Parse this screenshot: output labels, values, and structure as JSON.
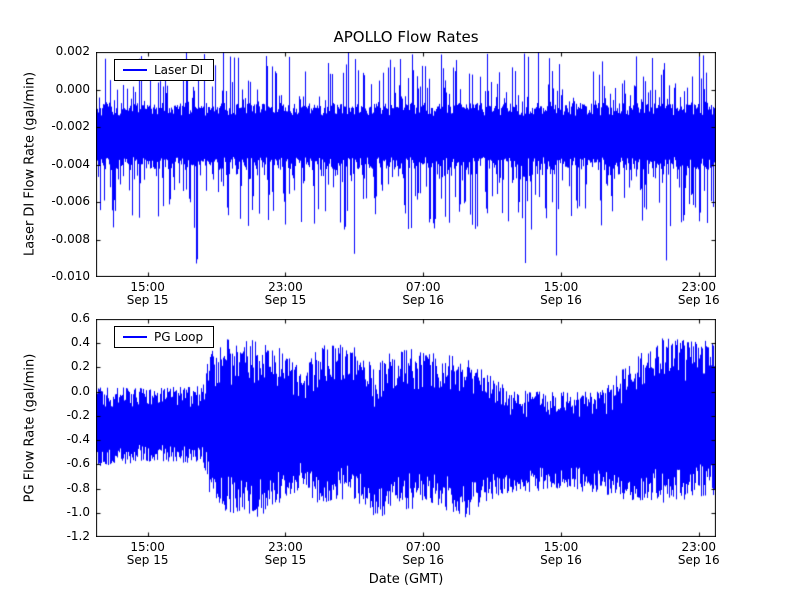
{
  "figure": {
    "title": "APOLLO Flow Rates",
    "background": "#ffffff",
    "line_color": "#0000ff",
    "axis_color": "#000000",
    "text_color": "#000000"
  },
  "chart_data": [
    {
      "type": "line",
      "title": "APOLLO Flow Rates",
      "series_name": "Laser DI",
      "ylabel": "Laser DI Flow Rate (gal/min)",
      "ylim": [
        -0.01,
        0.002
      ],
      "yticks": [
        0.002,
        0.0,
        -0.002,
        -0.004,
        -0.006,
        -0.008,
        -0.01
      ],
      "ytick_labels": [
        "0.002",
        "0.000",
        "-0.002",
        "-0.004",
        "-0.006",
        "-0.008",
        "-0.010"
      ],
      "x_hours_range": [
        0,
        36
      ],
      "x_epoch": "hours since Sep 15 12:00 GMT",
      "xticks_hours": [
        3,
        11,
        19,
        27,
        35
      ],
      "xtick_labels": [
        [
          "15:00",
          "Sep 15"
        ],
        [
          "23:00",
          "Sep 15"
        ],
        [
          "07:00",
          "Sep 16"
        ],
        [
          "15:00",
          "Sep 16"
        ],
        [
          "23:00",
          "Sep 16"
        ]
      ],
      "legend": {
        "label": "Laser DI",
        "position": "upper left"
      },
      "grid": false,
      "signal": {
        "description": "dense high-frequency noise around a baseline",
        "baseline": -0.0025,
        "core_band": [
          -0.0036,
          -0.0014
        ],
        "spike_high_max": 0.002,
        "spike_high_prob": 0.45,
        "spike_low_typical": -0.0075,
        "spike_low_prob": 0.4,
        "spike_low_min": -0.0093,
        "deep_spike_prob": 0.004
      }
    },
    {
      "type": "line",
      "series_name": "PG Loop",
      "ylabel": "PG Flow Rate (gal/min)",
      "xlabel": "Date (GMT)",
      "ylim": [
        -1.2,
        0.6
      ],
      "yticks": [
        0.6,
        0.4,
        0.2,
        0.0,
        -0.2,
        -0.4,
        -0.6,
        -0.8,
        -1.0,
        -1.2
      ],
      "ytick_labels": [
        "0.6",
        "0.4",
        "0.2",
        "0.0",
        "-0.2",
        "-0.4",
        "-0.6",
        "-0.8",
        "-1.0",
        "-1.2"
      ],
      "x_hours_range": [
        0,
        36
      ],
      "x_epoch": "hours since Sep 15 12:00 GMT",
      "xticks_hours": [
        3,
        11,
        19,
        27,
        35
      ],
      "xtick_labels": [
        [
          "15:00",
          "Sep 15"
        ],
        [
          "23:00",
          "Sep 15"
        ],
        [
          "07:00",
          "Sep 16"
        ],
        [
          "15:00",
          "Sep 16"
        ],
        [
          "23:00",
          "Sep 16"
        ]
      ],
      "legend": {
        "label": "PG Loop",
        "position": "upper left"
      },
      "grid": false,
      "signal": {
        "description": "dense oscillating noise; envelope [lo,hi] in gal/min vs hours",
        "envelope": [
          {
            "t": 0.0,
            "lo": -0.62,
            "hi": 0.04
          },
          {
            "t": 3.0,
            "lo": -0.58,
            "hi": 0.03
          },
          {
            "t": 6.2,
            "lo": -0.6,
            "hi": 0.05
          },
          {
            "t": 6.6,
            "lo": -0.85,
            "hi": 0.35
          },
          {
            "t": 7.5,
            "lo": -1.0,
            "hi": 0.45
          },
          {
            "t": 9.5,
            "lo": -1.05,
            "hi": 0.42
          },
          {
            "t": 11.0,
            "lo": -0.9,
            "hi": 0.35
          },
          {
            "t": 12.0,
            "lo": -0.8,
            "hi": 0.15
          },
          {
            "t": 13.0,
            "lo": -0.95,
            "hi": 0.4
          },
          {
            "t": 15.0,
            "lo": -0.9,
            "hi": 0.38
          },
          {
            "t": 16.2,
            "lo": -1.05,
            "hi": 0.2
          },
          {
            "t": 17.5,
            "lo": -1.0,
            "hi": 0.38
          },
          {
            "t": 19.5,
            "lo": -0.95,
            "hi": 0.32
          },
          {
            "t": 21.5,
            "lo": -1.05,
            "hi": 0.3
          },
          {
            "t": 22.8,
            "lo": -0.9,
            "hi": 0.15
          },
          {
            "t": 24.0,
            "lo": -0.85,
            "hi": 0.02
          },
          {
            "t": 27.0,
            "lo": -0.8,
            "hi": 0.0
          },
          {
            "t": 29.5,
            "lo": -0.85,
            "hi": 0.02
          },
          {
            "t": 31.0,
            "lo": -0.9,
            "hi": 0.25
          },
          {
            "t": 33.0,
            "lo": -0.92,
            "hi": 0.45
          },
          {
            "t": 35.0,
            "lo": -0.88,
            "hi": 0.42
          },
          {
            "t": 36.0,
            "lo": -0.85,
            "hi": 0.43
          }
        ]
      }
    }
  ],
  "layout_note": "two stacked subplots sharing the same GMT time axis"
}
